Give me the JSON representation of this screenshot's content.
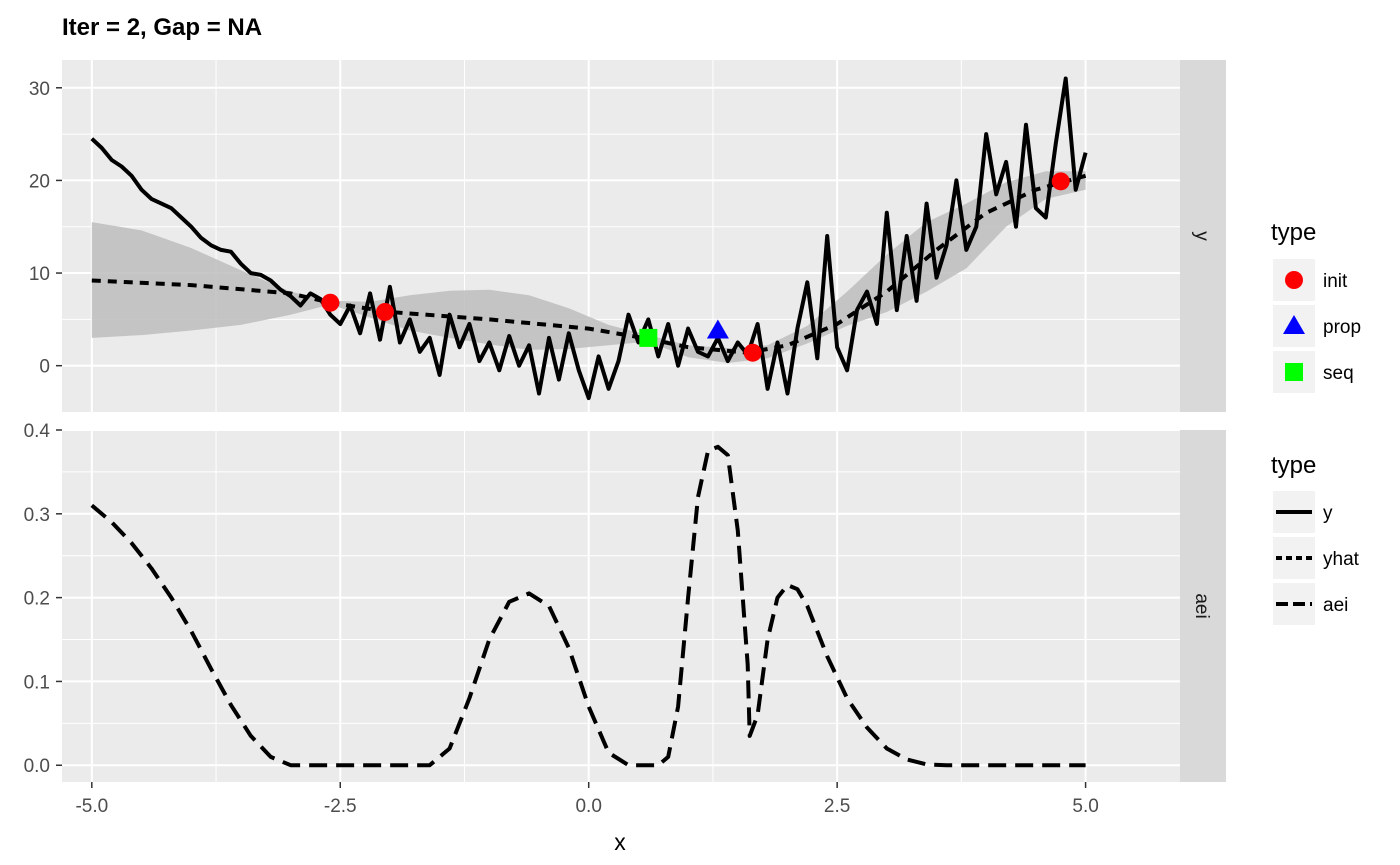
{
  "chart_data": {
    "type": "line",
    "title": "Iter = 2, Gap = NA",
    "xlabel": "x",
    "xlim": [
      -5.3,
      5.95
    ],
    "xticks": [
      "-5.0",
      "-2.5",
      "0.0",
      "2.5",
      "5.0"
    ],
    "xtick_values": [
      -5.0,
      -2.5,
      0.0,
      2.5,
      5.0
    ],
    "grid": true,
    "facets": [
      {
        "strip": "y",
        "ylim": [
          -5.0,
          33.0
        ],
        "yticks": [
          "0",
          "10",
          "20",
          "30"
        ],
        "ytick_values": [
          0,
          10,
          20,
          30
        ],
        "band": {
          "x": [
            -5.0,
            -4.5,
            -4.0,
            -3.5,
            -3.0,
            -2.6,
            -2.2,
            -1.8,
            -1.4,
            -1.0,
            -0.6,
            -0.2,
            0.2,
            0.6,
            1.0,
            1.4,
            1.8,
            2.2,
            2.6,
            3.0,
            3.4,
            3.8,
            4.2,
            4.6,
            5.0
          ],
          "upper": [
            15.5,
            14.6,
            12.7,
            10.3,
            8.0,
            7.0,
            6.9,
            7.6,
            8.1,
            8.2,
            7.6,
            6.2,
            4.4,
            3.3,
            2.2,
            1.9,
            2.2,
            4.3,
            8.0,
            12.0,
            15.5,
            17.5,
            19.8,
            21.0,
            21.0
          ],
          "lower": [
            3.0,
            3.3,
            3.8,
            4.4,
            5.5,
            6.6,
            5.2,
            3.8,
            3.0,
            2.3,
            1.7,
            1.8,
            2.2,
            2.6,
            0.9,
            0.3,
            0.8,
            2.4,
            4.3,
            5.8,
            8.0,
            10.5,
            15.0,
            18.0,
            19.0
          ]
        },
        "series": [
          {
            "name": "y",
            "x": [
              -5.0,
              -4.9,
              -4.8,
              -4.7,
              -4.6,
              -4.5,
              -4.4,
              -4.3,
              -4.2,
              -4.1,
              -4.0,
              -3.9,
              -3.8,
              -3.7,
              -3.6,
              -3.5,
              -3.4,
              -3.3,
              -3.2,
              -3.1,
              -3.0,
              -2.9,
              -2.8,
              -2.7,
              -2.6,
              -2.5,
              -2.4,
              -2.3,
              -2.2,
              -2.1,
              -2.0,
              -1.9,
              -1.8,
              -1.7,
              -1.6,
              -1.5,
              -1.4,
              -1.3,
              -1.2,
              -1.1,
              -1.0,
              -0.9,
              -0.8,
              -0.7,
              -0.6,
              -0.5,
              -0.4,
              -0.3,
              -0.2,
              -0.1,
              0.0,
              0.1,
              0.2,
              0.3,
              0.4,
              0.5,
              0.6,
              0.7,
              0.8,
              0.9,
              1.0,
              1.1,
              1.2,
              1.3,
              1.4,
              1.5,
              1.6,
              1.7,
              1.8,
              1.9,
              2.0,
              2.1,
              2.2,
              2.3,
              2.4,
              2.5,
              2.6,
              2.7,
              2.8,
              2.9,
              3.0,
              3.1,
              3.2,
              3.3,
              3.4,
              3.5,
              3.6,
              3.7,
              3.8,
              3.9,
              4.0,
              4.1,
              4.2,
              4.3,
              4.4,
              4.5,
              4.6,
              4.7,
              4.8,
              4.9,
              5.0
            ],
            "y": [
              24.5,
              23.5,
              22.2,
              21.5,
              20.5,
              19.0,
              18.0,
              17.5,
              17.0,
              16.0,
              15.0,
              13.8,
              13.0,
              12.5,
              12.3,
              11.0,
              10.0,
              9.8,
              9.2,
              8.2,
              7.5,
              6.5,
              7.8,
              7.2,
              5.5,
              4.5,
              6.5,
              3.5,
              7.8,
              2.8,
              8.5,
              2.5,
              5.0,
              1.5,
              3.0,
              -1.0,
              5.5,
              2.0,
              4.5,
              0.5,
              2.5,
              -0.5,
              3.2,
              0.0,
              2.2,
              -3.0,
              3.0,
              -1.5,
              3.5,
              -0.5,
              -3.5,
              1.0,
              -2.5,
              0.5,
              5.5,
              2.5,
              5.0,
              1.0,
              4.5,
              0.0,
              4.0,
              1.5,
              1.0,
              3.0,
              0.5,
              2.5,
              1.2,
              4.5,
              -2.5,
              2.5,
              -3.0,
              4.0,
              9.0,
              0.8,
              14.0,
              2.0,
              -0.5,
              6.0,
              8.0,
              4.5,
              16.5,
              6.0,
              14.0,
              7.0,
              17.5,
              9.5,
              13.0,
              20.0,
              12.5,
              15.0,
              25.0,
              18.5,
              22.0,
              15.0,
              26.0,
              17.0,
              16.0,
              24.0,
              31.0,
              19.0,
              23.0
            ]
          },
          {
            "name": "yhat",
            "x": [
              -5.0,
              -4.0,
              -3.0,
              -2.6,
              -2.0,
              -1.0,
              0.0,
              0.6,
              1.0,
              1.6,
              2.0,
              2.5,
              3.0,
              3.5,
              4.0,
              4.5,
              5.0
            ],
            "y": [
              9.2,
              8.7,
              7.8,
              6.8,
              5.8,
              5.0,
              4.0,
              2.9,
              2.0,
              1.4,
              2.2,
              4.5,
              8.0,
              12.5,
              16.5,
              19.0,
              20.5
            ]
          }
        ],
        "points": [
          {
            "type": "init",
            "x": -2.6,
            "y": 6.8
          },
          {
            "type": "init",
            "x": -2.05,
            "y": 5.8
          },
          {
            "type": "init",
            "x": 1.65,
            "y": 1.4
          },
          {
            "type": "init",
            "x": 4.75,
            "y": 19.9
          },
          {
            "type": "prop",
            "x": 1.3,
            "y": 3.8
          },
          {
            "type": "seq",
            "x": 0.6,
            "y": 3.0
          }
        ]
      },
      {
        "strip": "aei",
        "ylim": [
          -0.02,
          0.4
        ],
        "yticks": [
          "0.0",
          "0.1",
          "0.2",
          "0.3",
          "0.4"
        ],
        "ytick_values": [
          0.0,
          0.1,
          0.2,
          0.3,
          0.4
        ],
        "series": [
          {
            "name": "aei",
            "x": [
              -5.0,
              -4.8,
              -4.6,
              -4.4,
              -4.2,
              -4.0,
              -3.8,
              -3.6,
              -3.4,
              -3.2,
              -3.0,
              -2.5,
              -2.0,
              -1.6,
              -1.4,
              -1.2,
              -1.0,
              -0.8,
              -0.6,
              -0.4,
              -0.2,
              0.0,
              0.2,
              0.4,
              0.6,
              0.7,
              0.8,
              0.9,
              1.0,
              1.1,
              1.2,
              1.3,
              1.4,
              1.5,
              1.6,
              1.62,
              1.7,
              1.8,
              1.9,
              2.0,
              2.1,
              2.2,
              2.4,
              2.6,
              2.8,
              3.0,
              3.2,
              3.4,
              3.6,
              3.8,
              4.0,
              4.5,
              5.0
            ],
            "y": [
              0.31,
              0.29,
              0.265,
              0.235,
              0.2,
              0.16,
              0.115,
              0.072,
              0.035,
              0.01,
              0.0,
              0.0,
              0.0,
              0.0,
              0.02,
              0.08,
              0.15,
              0.195,
              0.205,
              0.19,
              0.14,
              0.07,
              0.015,
              0.0,
              0.0,
              0.0,
              0.01,
              0.07,
              0.2,
              0.32,
              0.375,
              0.38,
              0.37,
              0.28,
              0.12,
              0.035,
              0.06,
              0.15,
              0.2,
              0.215,
              0.21,
              0.19,
              0.13,
              0.08,
              0.045,
              0.02,
              0.007,
              0.001,
              0.0,
              0.0,
              0.0,
              0.0,
              0.0
            ]
          }
        ]
      }
    ],
    "legends": [
      {
        "title": "type",
        "entries": [
          {
            "label": "init",
            "shape": "circle",
            "color": "#ff0000"
          },
          {
            "label": "prop",
            "shape": "triangle",
            "color": "#0000ff"
          },
          {
            "label": "seq",
            "shape": "square",
            "color": "#00ff00"
          }
        ]
      },
      {
        "title": "type",
        "entries": [
          {
            "label": "y",
            "linetype": "solid"
          },
          {
            "label": "yhat",
            "linetype": "dotted"
          },
          {
            "label": "aei",
            "linetype": "dashed"
          }
        ]
      }
    ],
    "colors": {
      "panel": "#ebebeb",
      "strip": "#d9d9d9",
      "grid": "#ffffff",
      "band": "#bdbdbd",
      "line": "#000000"
    }
  }
}
